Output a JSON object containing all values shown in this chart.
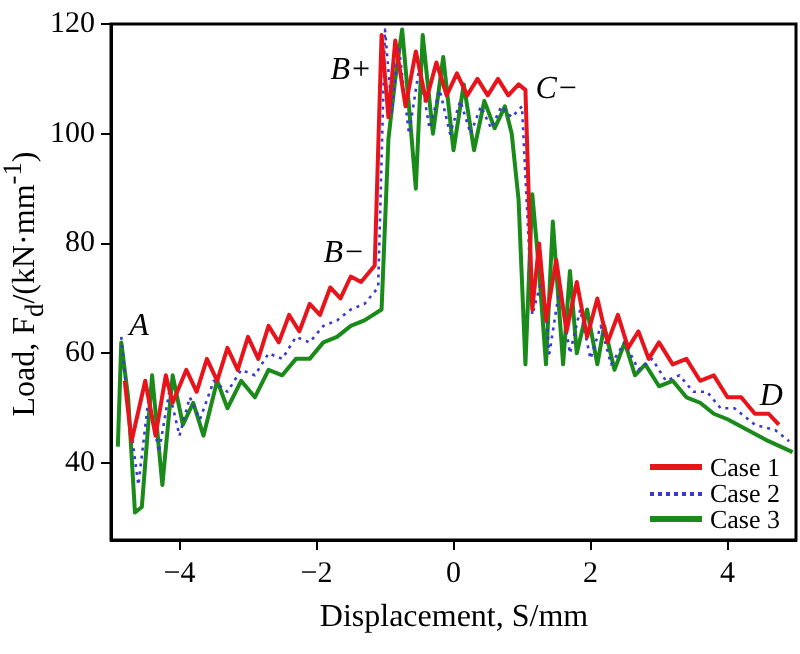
{
  "chart_data": {
    "type": "line",
    "xlabel": "Displacement, S/mm",
    "ylabel": "Load, F$_{d}$/(kN·mm$^{-1}$)",
    "xlim": [
      -5,
      5
    ],
    "xticks": [
      {
        "value": -4,
        "label": "−4"
      },
      {
        "value": -2,
        "label": "−2"
      },
      0,
      2,
      4
    ],
    "ylim": [
      26,
      120
    ],
    "yticks": [
      40,
      60,
      80,
      100,
      120
    ],
    "grid": false,
    "legend": "bottom right",
    "marker": "none",
    "series": [
      {
        "name": "Case 1",
        "color": "#e8141c",
        "line_style": "solid",
        "x": [
          -4.8,
          -4.7,
          -4.5,
          -4.35,
          -4.2,
          -4.1,
          -3.9,
          -3.75,
          -3.6,
          -3.45,
          -3.3,
          -3.15,
          -3,
          -2.85,
          -2.7,
          -2.55,
          -2.4,
          -2.25,
          -2.1,
          -1.95,
          -1.8,
          -1.65,
          -1.5,
          -1.35,
          -1.15,
          -1.05,
          -0.95,
          -0.85,
          -0.7,
          -0.55,
          -0.4,
          -0.25,
          -0.1,
          0.05,
          0.2,
          0.35,
          0.5,
          0.65,
          0.8,
          0.95,
          1.05,
          1.15,
          1.25,
          1.35,
          1.5,
          1.65,
          1.8,
          1.95,
          2.1,
          2.25,
          2.4,
          2.55,
          2.7,
          2.85,
          3,
          3.2,
          3.4,
          3.6,
          3.8,
          4,
          4.2,
          4.4,
          4.6,
          4.75
        ],
        "values": [
          55,
          44,
          55,
          45,
          56,
          51,
          57,
          53,
          59,
          55,
          61,
          57,
          63,
          59,
          65,
          62,
          67,
          64,
          69,
          67,
          72,
          70,
          74,
          73,
          76,
          118,
          103,
          117,
          105,
          115,
          106,
          113,
          107,
          111,
          107,
          110,
          107,
          110,
          107,
          109,
          108,
          68,
          80,
          66,
          77,
          64,
          73,
          63,
          70,
          62,
          67,
          61,
          64,
          59,
          62,
          58,
          59,
          55,
          56,
          52,
          52,
          49,
          49,
          47
        ]
      },
      {
        "name": "Case 2",
        "color": "#3a3ad0",
        "line_style": "dotted",
        "x": [
          -4.85,
          -4.75,
          -4.6,
          -4.45,
          -4.3,
          -4.15,
          -4,
          -3.85,
          -3.7,
          -3.5,
          -3.3,
          -3.1,
          -2.9,
          -2.7,
          -2.5,
          -2.3,
          -2.1,
          -1.9,
          -1.7,
          -1.5,
          -1.3,
          -1.1,
          -1,
          -0.9,
          -0.8,
          -0.65,
          -0.5,
          -0.35,
          -0.2,
          -0.05,
          0.1,
          0.25,
          0.4,
          0.55,
          0.7,
          0.85,
          1,
          1.15,
          1.3,
          1.4,
          1.55,
          1.7,
          1.85,
          2,
          2.15,
          2.3,
          2.5,
          2.7,
          2.9,
          3.1,
          3.3,
          3.5,
          3.7,
          3.9,
          4.1,
          4.4,
          4.7,
          4.9
        ],
        "values": [
          63,
          50,
          36,
          52,
          42,
          53,
          45,
          52,
          48,
          55,
          53,
          57,
          56,
          60,
          59,
          63,
          62,
          65,
          66,
          68,
          69,
          72,
          119,
          104,
          116,
          100,
          112,
          101,
          108,
          100,
          106,
          100,
          105,
          101,
          105,
          103,
          105,
          67,
          74,
          60,
          72,
          60,
          68,
          59,
          65,
          58,
          62,
          57,
          59,
          55,
          56,
          53,
          53,
          50,
          50,
          47,
          46,
          44
        ]
      },
      {
        "name": "Case 3",
        "color": "#1a8a1a",
        "line_style": "solid",
        "x": [
          -4.9,
          -4.85,
          -4.75,
          -4.65,
          -4.55,
          -4.4,
          -4.25,
          -4.1,
          -3.95,
          -3.8,
          -3.65,
          -3.45,
          -3.3,
          -3.1,
          -2.9,
          -2.7,
          -2.5,
          -2.3,
          -2.1,
          -1.9,
          -1.7,
          -1.5,
          -1.3,
          -1.05,
          -0.95,
          -0.85,
          -0.75,
          -0.65,
          -0.55,
          -0.45,
          -0.3,
          -0.15,
          0,
          0.15,
          0.3,
          0.45,
          0.6,
          0.75,
          0.85,
          0.95,
          1.05,
          1.15,
          1.25,
          1.35,
          1.45,
          1.6,
          1.7,
          1.8,
          1.95,
          2.1,
          2.2,
          2.35,
          2.5,
          2.65,
          2.8,
          3,
          3.2,
          3.4,
          3.6,
          3.8,
          4,
          4.3,
          4.6,
          4.95
        ],
        "values": [
          43,
          62,
          52,
          31,
          32,
          56,
          36,
          56,
          47,
          51,
          45,
          55,
          50,
          55,
          52,
          57,
          56,
          59,
          59,
          62,
          63,
          65,
          66,
          68,
          99,
          110,
          119,
          105,
          90,
          118,
          100,
          114,
          97,
          109,
          97,
          106,
          101,
          105,
          100,
          88,
          58,
          89,
          75,
          58,
          84,
          58,
          75,
          60,
          68,
          58,
          65,
          57,
          62,
          56,
          58,
          54,
          55,
          52,
          51,
          49,
          48,
          46,
          44,
          42
        ]
      }
    ],
    "annotations": [
      {
        "text": "A",
        "x": -4.85,
        "y": 62
      },
      {
        "text": "B−",
        "x": -1.15,
        "y": 76
      },
      {
        "text": "B+",
        "x": -1.05,
        "y": 118
      },
      {
        "text": "C−",
        "x": 1.05,
        "y": 108
      },
      {
        "text": "D",
        "x": 4.75,
        "y": 47
      }
    ]
  }
}
